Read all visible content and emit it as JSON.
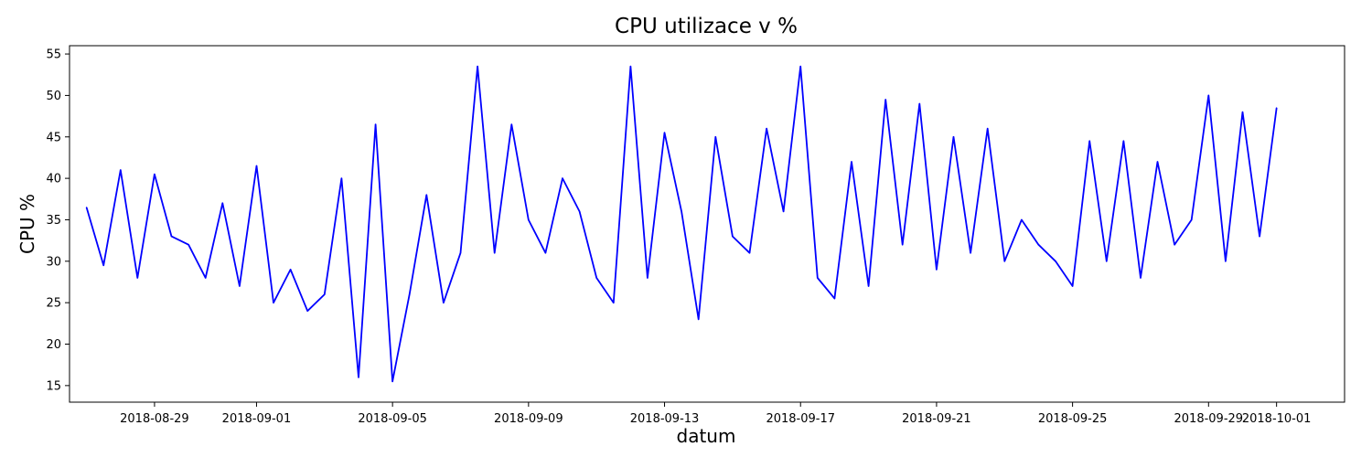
{
  "chart_data": {
    "type": "line",
    "title": "CPU utilizace v %",
    "xlabel": "datum",
    "ylabel": "CPU %",
    "x_ticks": [
      "2018-08-29",
      "2018-09-01",
      "2018-09-05",
      "2018-09-09",
      "2018-09-13",
      "2018-09-17",
      "2018-09-21",
      "2018-09-25",
      "2018-09-29",
      "2018-10-01"
    ],
    "y_ticks": [
      15,
      20,
      25,
      30,
      35,
      40,
      45,
      50,
      55
    ],
    "xlim": [
      "2018-08-26 12:00",
      "2018-10-03 00:00"
    ],
    "ylim": [
      13,
      56
    ],
    "grid": false,
    "line_color": "#0000ff",
    "series": [
      {
        "x": [
          "2018-08-27",
          "2018-08-27 12:00",
          "2018-08-28",
          "2018-08-28 12:00",
          "2018-08-29",
          "2018-08-29 12:00",
          "2018-08-30",
          "2018-08-30 12:00",
          "2018-08-31",
          "2018-08-31 12:00",
          "2018-09-01",
          "2018-09-01 12:00",
          "2018-09-02",
          "2018-09-02 12:00",
          "2018-09-03",
          "2018-09-03 12:00",
          "2018-09-04",
          "2018-09-04 12:00",
          "2018-09-05",
          "2018-09-05 12:00",
          "2018-09-06",
          "2018-09-06 12:00",
          "2018-09-07",
          "2018-09-07 12:00",
          "2018-09-08",
          "2018-09-08 12:00",
          "2018-09-09",
          "2018-09-09 12:00",
          "2018-09-10",
          "2018-09-10 12:00",
          "2018-09-11",
          "2018-09-11 12:00",
          "2018-09-12",
          "2018-09-12 12:00",
          "2018-09-13",
          "2018-09-13 12:00",
          "2018-09-14",
          "2018-09-14 12:00",
          "2018-09-15",
          "2018-09-15 12:00",
          "2018-09-16",
          "2018-09-16 12:00",
          "2018-09-17",
          "2018-09-17 12:00",
          "2018-09-18",
          "2018-09-18 12:00",
          "2018-09-19",
          "2018-09-19 12:00",
          "2018-09-20",
          "2018-09-20 12:00",
          "2018-09-21",
          "2018-09-21 12:00",
          "2018-09-22",
          "2018-09-22 12:00",
          "2018-09-23",
          "2018-09-23 12:00",
          "2018-09-24",
          "2018-09-24 12:00",
          "2018-09-25",
          "2018-09-25 12:00",
          "2018-09-26",
          "2018-09-26 12:00",
          "2018-09-27",
          "2018-09-27 12:00",
          "2018-09-28",
          "2018-09-28 12:00",
          "2018-09-29",
          "2018-09-29 12:00",
          "2018-09-30",
          "2018-09-30 12:00",
          "2018-10-01"
        ],
        "y": [
          36.5,
          29.5,
          41,
          28,
          40.5,
          33,
          32,
          28,
          37,
          27,
          41.5,
          25,
          29,
          24,
          26,
          40,
          16,
          46.5,
          15.5,
          26,
          38,
          25,
          31,
          53.5,
          31,
          46.5,
          35,
          31,
          40,
          36,
          28,
          25,
          53.5,
          28,
          45.5,
          36,
          23,
          45,
          33,
          31,
          46,
          36,
          53.5,
          28,
          25.5,
          42,
          27,
          49.5,
          32,
          49,
          29,
          45,
          31,
          46,
          30,
          35,
          32,
          30,
          27,
          44.5,
          30,
          44.5,
          28,
          42,
          32,
          35,
          50,
          30,
          48,
          33,
          48.5
        ]
      }
    ]
  }
}
